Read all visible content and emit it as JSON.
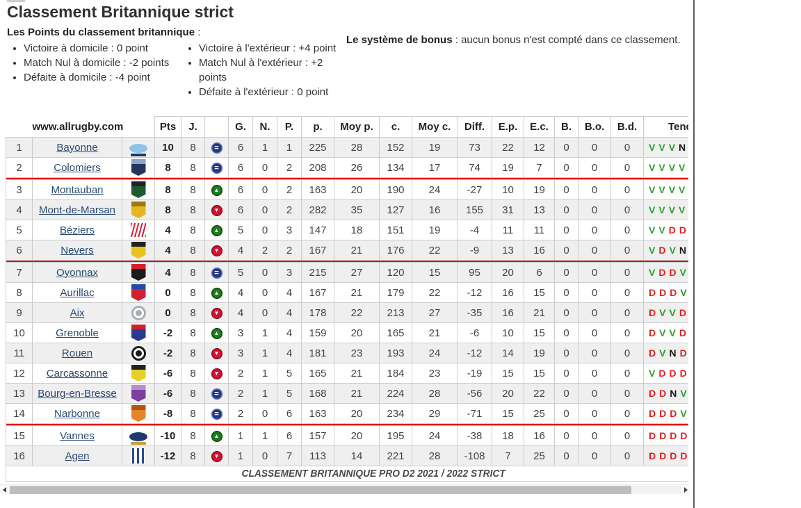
{
  "page": {
    "title": "Classement Britannique strict",
    "points_heading": "Les Points du classement britannique",
    "points_heading_suffix": " :",
    "bullets_left": [
      "Victoire à domicile : 0 point",
      "Match Nul à domicile : -2 points",
      "Défaite à domicile : -4 point"
    ],
    "bullets_right": [
      "Victoire à l'extérieur : +4 point",
      "Match Nul à l'extérieur : +2 points",
      "Défaite à l'extérieur : 0 point"
    ],
    "bonus_label": "Le système de bonus",
    "bonus_text": " : aucun bonus n'est compté dans ce classement."
  },
  "colors": {
    "link": "#2a4a73",
    "separator_red": "#dd1111",
    "trend_v_green": "#2e9e2e",
    "trend_d_red": "#e02020",
    "icon_equal_blue": "#26367e",
    "icon_up_green": "#1e7d1e",
    "icon_down_red": "#d31430",
    "alt_row": "#efefef"
  },
  "table": {
    "site_header": "www.allrugby.com",
    "columns": [
      "Pts",
      "J.",
      "",
      "G.",
      "N.",
      "P.",
      "p.",
      "Moy p.",
      "c.",
      "Moy c.",
      "Diff.",
      "E.p.",
      "E.c.",
      "B.",
      "B.o.",
      "B.d.",
      "Tendance"
    ],
    "footer_caption": "CLASSEMENT BRITANNIQUE PRO D2 2021 / 2022 STRICT",
    "separators_after_ranks": [
      2,
      6,
      14
    ],
    "trend_glyphs": {
      "equal": "=",
      "up": "▲",
      "down": "▼"
    },
    "rows": [
      {
        "rank": "1",
        "team": "Bayonne",
        "trend": "equal",
        "pts": "10",
        "j": "8",
        "stats": [
          "6",
          "1",
          "1",
          "225",
          "28",
          "152",
          "19",
          "73",
          "22",
          "12",
          "0",
          "0",
          "0"
        ],
        "tend": [
          "V",
          "V",
          "V",
          "N"
        ],
        "logo": {
          "shape": "ellipse",
          "c1": "#8ec4e8",
          "c2": "#1d3a6e"
        }
      },
      {
        "rank": "2",
        "team": "Colomiers",
        "trend": "equal",
        "pts": "8",
        "j": "8",
        "stats": [
          "6",
          "0",
          "2",
          "208",
          "26",
          "134",
          "17",
          "74",
          "19",
          "7",
          "0",
          "0",
          "0"
        ],
        "tend": [
          "V",
          "V",
          "V",
          "V"
        ],
        "logo": {
          "shape": "shield",
          "c1": "#24365c",
          "c2": "#8fa3c4"
        }
      },
      {
        "rank": "3",
        "team": "Montauban",
        "trend": "up",
        "pts": "8",
        "j": "8",
        "stats": [
          "6",
          "0",
          "2",
          "163",
          "20",
          "190",
          "24",
          "-27",
          "10",
          "19",
          "0",
          "0",
          "0"
        ],
        "tend": [
          "V",
          "V",
          "V",
          "V"
        ],
        "logo": {
          "shape": "shield",
          "c1": "#1d5b33",
          "c2": "#222222"
        }
      },
      {
        "rank": "4",
        "team": "Mont-de-Marsan",
        "trend": "down",
        "pts": "8",
        "j": "8",
        "stats": [
          "6",
          "0",
          "2",
          "282",
          "35",
          "127",
          "16",
          "155",
          "31",
          "13",
          "0",
          "0",
          "0"
        ],
        "tend": [
          "V",
          "V",
          "V",
          "V"
        ],
        "logo": {
          "shape": "shield",
          "c1": "#e7b51f",
          "c2": "#9a7a10"
        }
      },
      {
        "rank": "5",
        "team": "Béziers",
        "trend": "up",
        "pts": "4",
        "j": "8",
        "stats": [
          "5",
          "0",
          "3",
          "147",
          "18",
          "151",
          "19",
          "-4",
          "11",
          "11",
          "0",
          "0",
          "0"
        ],
        "tend": [
          "V",
          "V",
          "D",
          "D"
        ],
        "logo": {
          "shape": "stripes",
          "c1": "#d42233",
          "c2": "#d42233"
        }
      },
      {
        "rank": "6",
        "team": "Nevers",
        "trend": "down",
        "pts": "4",
        "j": "8",
        "stats": [
          "4",
          "2",
          "2",
          "167",
          "21",
          "176",
          "22",
          "-9",
          "13",
          "16",
          "0",
          "0",
          "0"
        ],
        "tend": [
          "V",
          "D",
          "V",
          "N"
        ],
        "logo": {
          "shape": "shield",
          "c1": "#e8c21f",
          "c2": "#222222"
        }
      },
      {
        "rank": "7",
        "team": "Oyonnax",
        "trend": "equal",
        "pts": "4",
        "j": "8",
        "stats": [
          "5",
          "0",
          "3",
          "215",
          "27",
          "120",
          "15",
          "95",
          "20",
          "6",
          "0",
          "0",
          "0"
        ],
        "tend": [
          "V",
          "D",
          "D",
          "V"
        ],
        "logo": {
          "shape": "shield",
          "c1": "#1b1b1b",
          "c2": "#d1202c"
        }
      },
      {
        "rank": "8",
        "team": "Aurillac",
        "trend": "up",
        "pts": "0",
        "j": "8",
        "stats": [
          "4",
          "0",
          "4",
          "167",
          "21",
          "179",
          "22",
          "-12",
          "16",
          "15",
          "0",
          "0",
          "0"
        ],
        "tend": [
          "D",
          "D",
          "D",
          "V"
        ],
        "logo": {
          "shape": "shield",
          "c1": "#d12030",
          "c2": "#2448a8"
        }
      },
      {
        "rank": "9",
        "team": "Aix",
        "trend": "down",
        "pts": "0",
        "j": "8",
        "stats": [
          "4",
          "0",
          "4",
          "178",
          "22",
          "213",
          "27",
          "-35",
          "16",
          "21",
          "0",
          "0",
          "0"
        ],
        "tend": [
          "D",
          "V",
          "V",
          "D"
        ],
        "logo": {
          "shape": "circle",
          "c1": "#a8aeb6",
          "c2": "#ffffff"
        }
      },
      {
        "rank": "10",
        "team": "Grenoble",
        "trend": "up",
        "pts": "-2",
        "j": "8",
        "stats": [
          "3",
          "1",
          "4",
          "159",
          "20",
          "165",
          "21",
          "-6",
          "10",
          "15",
          "0",
          "0",
          "0"
        ],
        "tend": [
          "D",
          "V",
          "V",
          "D"
        ],
        "logo": {
          "shape": "shield",
          "c1": "#273a8c",
          "c2": "#d12030"
        }
      },
      {
        "rank": "11",
        "team": "Rouen",
        "trend": "down",
        "pts": "-2",
        "j": "8",
        "stats": [
          "3",
          "1",
          "4",
          "181",
          "23",
          "193",
          "24",
          "-12",
          "14",
          "19",
          "0",
          "0",
          "0"
        ],
        "tend": [
          "D",
          "V",
          "N",
          "D"
        ],
        "logo": {
          "shape": "circle",
          "c1": "#1b1b1b",
          "c2": "#ffffff"
        }
      },
      {
        "rank": "12",
        "team": "Carcassonne",
        "trend": "down",
        "pts": "-6",
        "j": "8",
        "stats": [
          "2",
          "1",
          "5",
          "165",
          "21",
          "184",
          "23",
          "-19",
          "15",
          "15",
          "0",
          "0",
          "0"
        ],
        "tend": [
          "V",
          "D",
          "D",
          "D"
        ],
        "logo": {
          "shape": "shield",
          "c1": "#e8cf2a",
          "c2": "#222222"
        }
      },
      {
        "rank": "13",
        "team": "Bourg-en-Bresse",
        "trend": "equal",
        "pts": "-6",
        "j": "8",
        "stats": [
          "2",
          "1",
          "5",
          "168",
          "21",
          "224",
          "28",
          "-56",
          "20",
          "22",
          "0",
          "0",
          "0"
        ],
        "tend": [
          "D",
          "D",
          "N",
          "V"
        ],
        "logo": {
          "shape": "shield",
          "c1": "#7b3fa0",
          "c2": "#b98cd4"
        }
      },
      {
        "rank": "14",
        "team": "Narbonne",
        "trend": "equal",
        "pts": "-8",
        "j": "8",
        "stats": [
          "2",
          "0",
          "6",
          "163",
          "20",
          "234",
          "29",
          "-71",
          "15",
          "25",
          "0",
          "0",
          "0"
        ],
        "tend": [
          "D",
          "D",
          "D",
          "V"
        ],
        "logo": {
          "shape": "shield",
          "c1": "#e8832a",
          "c2": "#b35510"
        }
      },
      {
        "rank": "15",
        "team": "Vannes",
        "trend": "up",
        "pts": "-10",
        "j": "8",
        "stats": [
          "1",
          "1",
          "6",
          "157",
          "20",
          "195",
          "24",
          "-38",
          "18",
          "16",
          "0",
          "0",
          "0"
        ],
        "tend": [
          "D",
          "D",
          "D",
          "D"
        ],
        "logo": {
          "shape": "ellipse",
          "c1": "#1d3a6e",
          "c2": "#c5a23c"
        }
      },
      {
        "rank": "16",
        "team": "Agen",
        "trend": "down",
        "pts": "-12",
        "j": "8",
        "stats": [
          "1",
          "0",
          "7",
          "113",
          "14",
          "221",
          "28",
          "-108",
          "7",
          "25",
          "0",
          "0",
          "0"
        ],
        "tend": [
          "D",
          "D",
          "D",
          "D"
        ],
        "logo": {
          "shape": "bars",
          "c1": "#274b8f",
          "c2": "#274b8f"
        }
      }
    ]
  }
}
